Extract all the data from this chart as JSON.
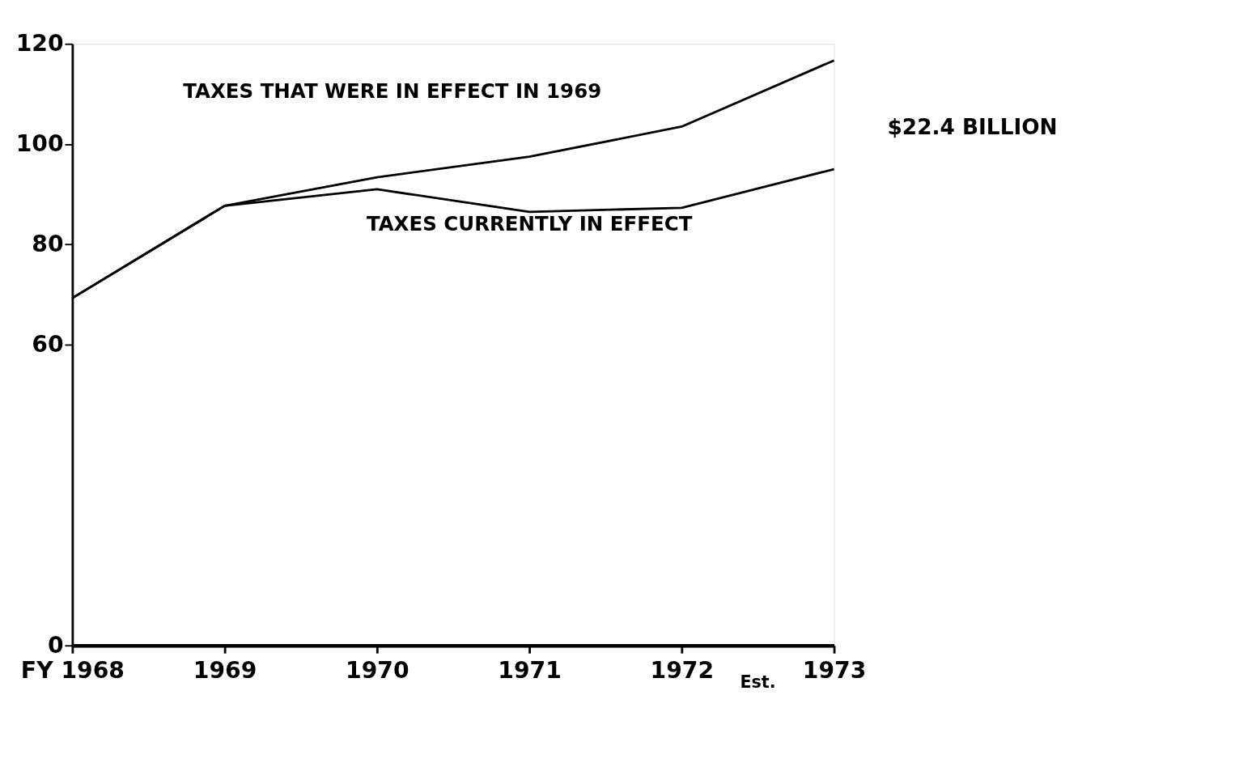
{
  "chart_data": {
    "type": "line",
    "categories": [
      "FY 1968",
      "1969",
      "1970",
      "1971",
      "1972",
      "1973"
    ],
    "series": [
      {
        "name": "TAXES THAT WERE IN EFFECT IN 1969",
        "color": "#000000",
        "values": [
          69.3,
          87.7,
          93.4,
          97.5,
          103.5,
          116.7
        ]
      },
      {
        "name": "TAXES CURRENTLY IN EFFECT",
        "color": "#000000",
        "values": [
          69.3,
          87.7,
          91.0,
          86.5,
          87.3,
          95.0
        ]
      }
    ],
    "ylim": [
      0,
      120
    ],
    "yticks": [
      0,
      60,
      80,
      100,
      120
    ],
    "grid": false,
    "legend": false,
    "marker": "none",
    "line_style": "solid",
    "annotations": [
      "$22.4 BILLION",
      "Est."
    ]
  }
}
